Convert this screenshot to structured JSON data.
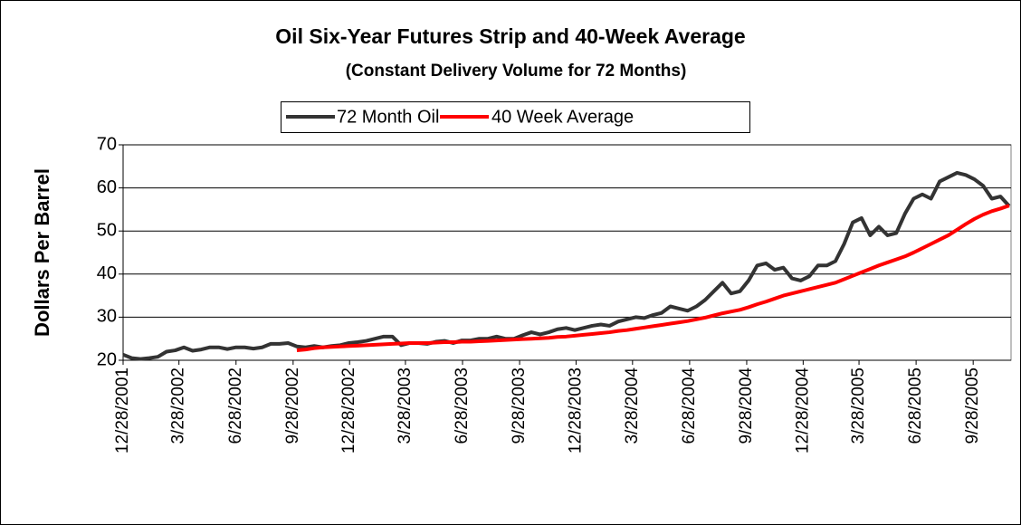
{
  "chart_data": {
    "type": "line",
    "title": "Oil Six-Year Futures Strip and 40-Week Average",
    "subtitle": "(Constant Delivery Volume for 72 Months)",
    "y_label": "Dollars Per Barrel",
    "x": [
      "2001-12-28",
      "2002-01-11",
      "2002-01-25",
      "2002-02-08",
      "2002-02-22",
      "2002-03-08",
      "2002-03-22",
      "2002-04-05",
      "2002-04-19",
      "2002-05-03",
      "2002-05-17",
      "2002-05-31",
      "2002-06-14",
      "2002-06-28",
      "2002-07-12",
      "2002-07-26",
      "2002-08-09",
      "2002-08-23",
      "2002-09-06",
      "2002-09-20",
      "2002-10-04",
      "2002-10-18",
      "2002-11-01",
      "2002-11-15",
      "2002-11-29",
      "2002-12-13",
      "2002-12-27",
      "2003-01-10",
      "2003-01-24",
      "2003-02-07",
      "2003-02-21",
      "2003-03-07",
      "2003-03-21",
      "2003-04-04",
      "2003-04-18",
      "2003-05-02",
      "2003-05-16",
      "2003-05-30",
      "2003-06-13",
      "2003-06-27",
      "2003-07-11",
      "2003-07-25",
      "2003-08-08",
      "2003-08-22",
      "2003-09-05",
      "2003-09-19",
      "2003-10-03",
      "2003-10-17",
      "2003-10-31",
      "2003-11-14",
      "2003-11-28",
      "2003-12-12",
      "2003-12-26",
      "2004-01-09",
      "2004-01-23",
      "2004-02-06",
      "2004-02-20",
      "2004-03-05",
      "2004-03-19",
      "2004-04-02",
      "2004-04-16",
      "2004-04-30",
      "2004-05-14",
      "2004-05-28",
      "2004-06-11",
      "2004-06-25",
      "2004-07-09",
      "2004-07-23",
      "2004-08-06",
      "2004-08-20",
      "2004-09-03",
      "2004-09-17",
      "2004-10-01",
      "2004-10-15",
      "2004-10-29",
      "2004-11-12",
      "2004-11-26",
      "2004-12-10",
      "2004-12-24",
      "2005-01-07",
      "2005-01-21",
      "2005-02-04",
      "2005-02-18",
      "2005-03-04",
      "2005-03-18",
      "2005-04-01",
      "2005-04-15",
      "2005-04-29",
      "2005-05-13",
      "2005-05-27",
      "2005-06-10",
      "2005-06-24",
      "2005-07-08",
      "2005-07-22",
      "2005-08-05",
      "2005-08-19",
      "2005-09-02",
      "2005-09-16",
      "2005-09-30",
      "2005-10-14",
      "2005-10-28",
      "2005-11-11",
      "2005-11-25"
    ],
    "series": [
      {
        "name": "72 Month Oil",
        "color": "#333333",
        "values": [
          21.3,
          20.5,
          20.3,
          20.5,
          20.8,
          22,
          22.3,
          23,
          22.2,
          22.5,
          23,
          23,
          22.6,
          23,
          23,
          22.7,
          23,
          23.8,
          23.8,
          24,
          23.2,
          23,
          23.3,
          23,
          23.3,
          23.5,
          24,
          24.2,
          24.5,
          25,
          25.5,
          25.5,
          23.5,
          24,
          24,
          23.8,
          24.3,
          24.5,
          24,
          24.6,
          24.6,
          25,
          25,
          25.5,
          25,
          25,
          25.8,
          26.5,
          26,
          26.5,
          27.2,
          27.5,
          27,
          27.5,
          28,
          28.3,
          28,
          29,
          29.5,
          30,
          29.8,
          30.5,
          31,
          32.5,
          32,
          31.5,
          32.5,
          34,
          36,
          38,
          35.5,
          36,
          38.5,
          42,
          42.5,
          41,
          41.5,
          39,
          38.5,
          39.5,
          42,
          42,
          43,
          47,
          52,
          53,
          49,
          51,
          49,
          49.5,
          54,
          57.5,
          58.5,
          57.5,
          61.5,
          62.5,
          63.5,
          63,
          62,
          60.5,
          57.5,
          58,
          55.8
        ]
      },
      {
        "name": "40 Week Average",
        "color": "#ff0000",
        "values": [
          null,
          null,
          null,
          null,
          null,
          null,
          null,
          null,
          null,
          null,
          null,
          null,
          null,
          null,
          null,
          null,
          null,
          null,
          null,
          null,
          22.3,
          22.5,
          22.8,
          23,
          23.1,
          23.2,
          23.3,
          23.4,
          23.5,
          23.6,
          23.7,
          23.8,
          23.9,
          24,
          24,
          24,
          24.1,
          24.2,
          24.2,
          24.3,
          24.3,
          24.4,
          24.5,
          24.6,
          24.7,
          24.8,
          24.9,
          25,
          25.1,
          25.2,
          25.4,
          25.5,
          25.7,
          25.9,
          26.1,
          26.3,
          26.5,
          26.8,
          27,
          27.3,
          27.6,
          27.9,
          28.2,
          28.5,
          28.8,
          29.1,
          29.5,
          29.9,
          30.4,
          30.9,
          31.3,
          31.7,
          32.3,
          33,
          33.6,
          34.3,
          35,
          35.5,
          36,
          36.5,
          37,
          37.5,
          38,
          38.8,
          39.6,
          40.4,
          41.2,
          42,
          42.7,
          43.4,
          44.1,
          45,
          46,
          47,
          48,
          49,
          50.3,
          51.6,
          52.8,
          53.8,
          54.6,
          55.2,
          55.9
        ]
      }
    ],
    "xlim": [
      "2001-12-28",
      "2005-11-28"
    ],
    "xticks": [
      {
        "value": "2001-12-28",
        "label": "12/28/2001"
      },
      {
        "value": "2002-03-28",
        "label": "3/28/2002"
      },
      {
        "value": "2002-06-28",
        "label": "6/28/2002"
      },
      {
        "value": "2002-09-28",
        "label": "9/28/2002"
      },
      {
        "value": "2002-12-28",
        "label": "12/28/2002"
      },
      {
        "value": "2003-03-28",
        "label": "3/28/2003"
      },
      {
        "value": "2003-06-28",
        "label": "6/28/2003"
      },
      {
        "value": "2003-09-28",
        "label": "9/28/2003"
      },
      {
        "value": "2003-12-28",
        "label": "12/28/2003"
      },
      {
        "value": "2004-03-28",
        "label": "3/28/2004"
      },
      {
        "value": "2004-06-28",
        "label": "6/28/2004"
      },
      {
        "value": "2004-09-28",
        "label": "9/28/2004"
      },
      {
        "value": "2004-12-28",
        "label": "12/28/2004"
      },
      {
        "value": "2005-03-28",
        "label": "3/28/2005"
      },
      {
        "value": "2005-06-28",
        "label": "6/28/2005"
      },
      {
        "value": "2005-09-28",
        "label": "9/28/2005"
      }
    ],
    "ylim": [
      20,
      70
    ],
    "yticks": [
      20,
      30,
      40,
      50,
      60,
      70
    ],
    "grid": true,
    "legend": "top"
  }
}
